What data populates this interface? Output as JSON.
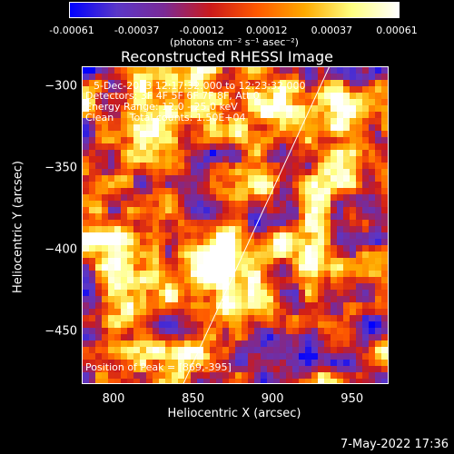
{
  "colorbar": {
    "ticks": [
      "-0.00061",
      "-0.00037",
      "-0.00012",
      "0.00012",
      "0.00037",
      "0.00061"
    ],
    "unit": "(photons cm⁻² s⁻¹ asec⁻²)"
  },
  "chart_data": {
    "type": "heatmap",
    "title": "Reconstructed RHESSI Image",
    "xlabel": "Heliocentric X (arcsec)",
    "ylabel": "Heliocentric Y (arcsec)",
    "xlim": [
      780,
      973
    ],
    "ylim": [
      -482,
      -288
    ],
    "xticks": [
      "800",
      "850",
      "900",
      "950"
    ],
    "yticks": [
      "-300",
      "-350",
      "-400",
      "-450"
    ],
    "value_range": [
      -0.00061,
      0.00061
    ],
    "limb_line": {
      "x": [
        843,
        935
      ],
      "y": [
        -482,
        -288
      ]
    },
    "annotations": [
      "5-Dec-2003 12:17:32.000 to 12:23:32.000",
      "Detectors: 3F 4F 5F 6F 7F 8F, Att 0",
      "Energy Range: 12.0 - 25.0 keV",
      "Clean     Total counts: 1.50E+04"
    ],
    "peak_label": "Position of Peak = [869,-395]",
    "peak": [
      869,
      -395
    ]
  },
  "footer": "7-May-2022 17:36",
  "colors": {
    "background": "#000000",
    "colormap": [
      "#0000ff",
      "#5a37c8",
      "#7a2a96",
      "#cc1a1a",
      "#ff5a00",
      "#ffaa00",
      "#ffff80",
      "#ffffff"
    ]
  }
}
